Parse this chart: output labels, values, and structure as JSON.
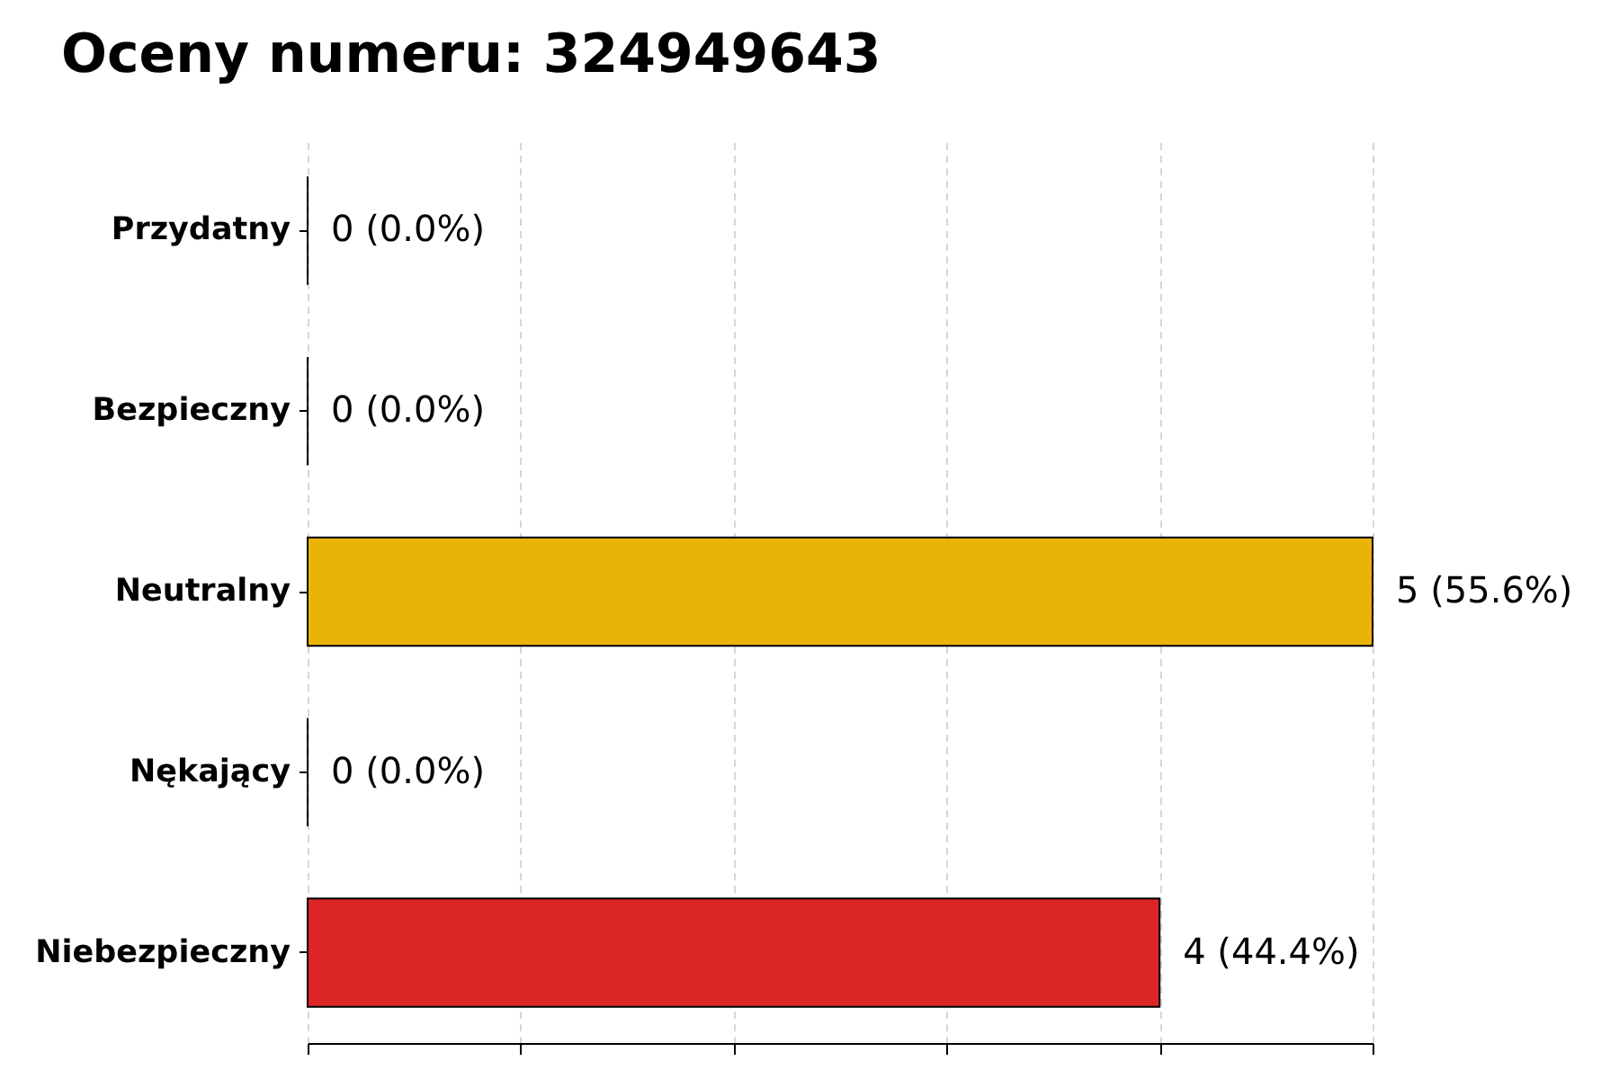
{
  "chart_data": {
    "type": "bar",
    "orientation": "horizontal",
    "title": "Oceny numeru: 324949643",
    "categories": [
      "Przydatny",
      "Bezpieczny",
      "Neutralny",
      "Nękający",
      "Niebezpieczny"
    ],
    "values": [
      0,
      0,
      5,
      0,
      4
    ],
    "colors": [
      null,
      null,
      "#eab308",
      null,
      "#dc2626"
    ],
    "value_labels": [
      "0 (0.0%)",
      "0 (0.0%)",
      "5 (55.6%)",
      "0 (0.0%)",
      "4 (44.4%)"
    ],
    "grid": "x",
    "tick_labels": "y"
  }
}
